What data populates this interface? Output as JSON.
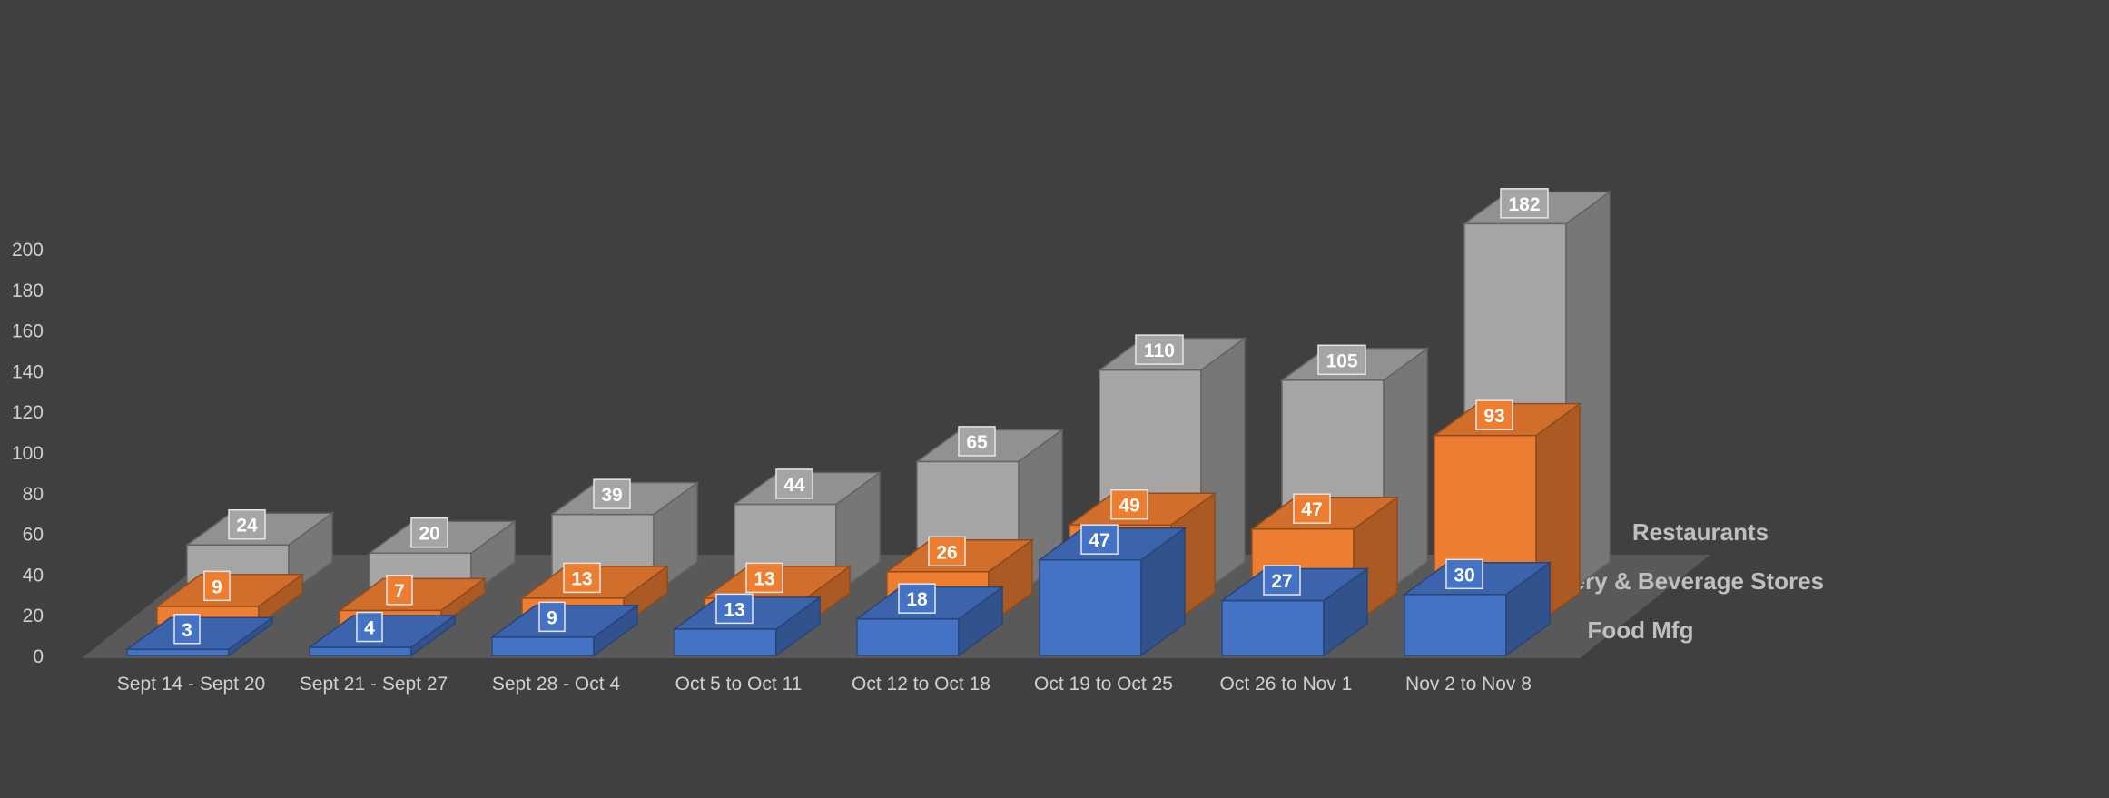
{
  "chart_data": {
    "type": "bar",
    "categories": [
      "Sept 14 - Sept 20",
      "Sept 21 - Sept 27",
      "Sept 28 - Oct 4",
      "Oct 5 to Oct 11",
      "Oct 12 to Oct 18",
      "Oct 19 to Oct 25",
      "Oct 26 to Nov 1",
      "Nov 2 to Nov 8"
    ],
    "series": [
      {
        "name": "Food Mfg",
        "values": [
          3,
          4,
          9,
          13,
          18,
          47,
          27,
          30
        ],
        "color": "#4472C4"
      },
      {
        "name": "Grocery & Beverage Stores",
        "values": [
          9,
          7,
          13,
          13,
          26,
          49,
          47,
          93
        ],
        "color": "#ED7D31"
      },
      {
        "name": "Restaurants",
        "values": [
          24,
          20,
          39,
          44,
          65,
          110,
          105,
          182
        ],
        "color": "#A5A5A5"
      }
    ],
    "ylim": [
      0,
      200
    ],
    "yticks": [
      0,
      20,
      40,
      60,
      80,
      100,
      120,
      140,
      160,
      180,
      200
    ],
    "background": "#404040",
    "style": "3d-column"
  }
}
